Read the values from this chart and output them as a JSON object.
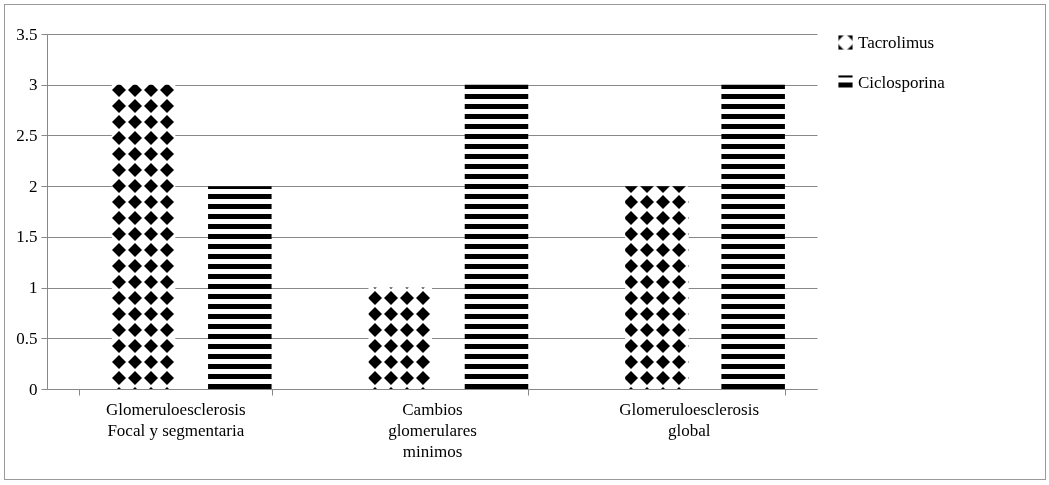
{
  "chart_data": {
    "type": "bar",
    "categories": [
      "Glomeruloesclerosis Focal y segmentaria",
      "Cambios glomerulares minimos",
      "Glomeruloesclerosis global"
    ],
    "series": [
      {
        "name": "Tacrolimus",
        "color": "#000000",
        "values": [
          3,
          1,
          2
        ]
      },
      {
        "name": "Ciclosporina",
        "color": "#000000",
        "values": [
          2,
          3,
          3
        ]
      }
    ],
    "ylim": [
      0,
      3.5
    ],
    "yticks": [
      0,
      0.5,
      1,
      1.5,
      2,
      2.5,
      3,
      3.5
    ],
    "grid": "y",
    "legend": "right"
  }
}
